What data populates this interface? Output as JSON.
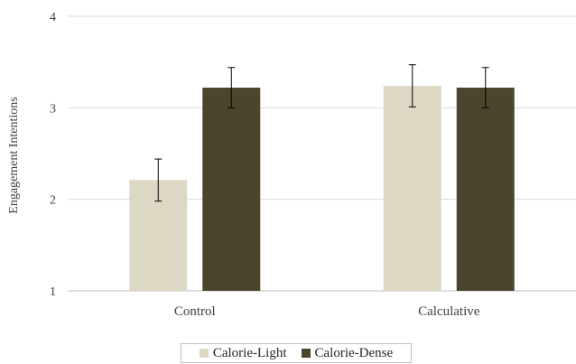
{
  "chart_data": {
    "type": "bar",
    "categories": [
      "Control",
      "Calculative"
    ],
    "series": [
      {
        "name": "Calorie-Light",
        "values": [
          2.21,
          3.24
        ],
        "error": [
          0.23,
          0.23
        ],
        "color": "#ddd8c3"
      },
      {
        "name": "Calorie-Dense",
        "values": [
          3.22,
          3.22
        ],
        "error": [
          0.22,
          0.22
        ],
        "color": "#4b452c"
      }
    ],
    "ylabel": "Engagement Intentions",
    "ylim": [
      1,
      4
    ],
    "yticks": [
      1,
      2,
      3,
      4
    ],
    "grid": true,
    "legend_position": "bottom"
  }
}
